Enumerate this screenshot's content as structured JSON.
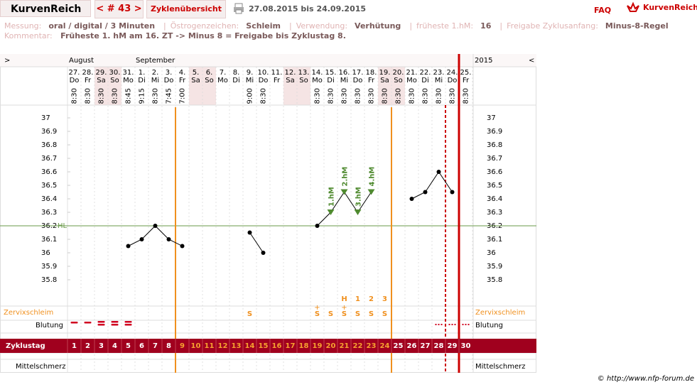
{
  "header": {
    "logo": "KurvenReich",
    "cycle": "< # 43 >",
    "overview": "Zyklenübersicht",
    "range": "27.08.2015 bis 24.09.2015",
    "faq": "FAQ",
    "brand": "KurvenReich"
  },
  "info": {
    "items": [
      {
        "label": "Messung:",
        "value": "oral / digital / 3 Minuten"
      },
      {
        "label": "Östrogenzeichen:",
        "value": "Schleim"
      },
      {
        "label": "Verwendung:",
        "value": "Verhütung"
      },
      {
        "label": "früheste 1.hM:",
        "value": "16"
      },
      {
        "label": "Freigabe Zyklusanfang:",
        "value": "Minus-8-Regel"
      }
    ],
    "separator": "|",
    "comment_label": "Kommentar:",
    "comment": "Früheste 1. hM am 16. ZT -> Minus 8 = Freigabe bis Zyklustag 8."
  },
  "chart_data": {
    "type": "line",
    "nav_left": ">",
    "nav_right": "<",
    "months": [
      "August",
      "September"
    ],
    "year": "2015",
    "dates": [
      "27.",
      "28.",
      "29.",
      "30.",
      "31.",
      "1.",
      "2.",
      "3.",
      "4.",
      "5.",
      "6.",
      "7.",
      "8.",
      "9.",
      "10.",
      "11.",
      "12.",
      "13.",
      "14.",
      "15.",
      "16.",
      "17.",
      "18.",
      "19.",
      "20.",
      "21.",
      "22.",
      "23.",
      "24.",
      "25."
    ],
    "weekdays": [
      "Do",
      "Fr",
      "Sa",
      "So",
      "Mo",
      "Di",
      "Mi",
      "Do",
      "Fr",
      "Sa",
      "So",
      "Mo",
      "Di",
      "Mi",
      "Do",
      "Fr",
      "Sa",
      "So",
      "Mo",
      "Di",
      "Mi",
      "Do",
      "Fr",
      "Sa",
      "So",
      "Mo",
      "Di",
      "Mi",
      "Do",
      "Fr"
    ],
    "times": [
      "8:30",
      "8:30",
      "8:30",
      "8:30",
      "8:45",
      "9:15",
      "8:30",
      "7:45",
      "7:00",
      null,
      null,
      null,
      null,
      "9:00",
      "8:30",
      null,
      null,
      null,
      "8:30",
      "8:30",
      "8:30",
      "8:30",
      "8:30",
      "8:30",
      "8:30",
      "8:30",
      "8:30",
      "8:30",
      "8:30",
      "8:30"
    ],
    "values": [
      null,
      null,
      null,
      null,
      36.05,
      36.1,
      36.2,
      36.1,
      36.05,
      null,
      null,
      null,
      null,
      36.15,
      36.0,
      null,
      null,
      null,
      36.2,
      36.3,
      36.45,
      36.3,
      36.45,
      null,
      null,
      36.4,
      36.45,
      36.6,
      36.45,
      null
    ],
    "color": "#000000",
    "hm_labels": [
      null,
      null,
      null,
      null,
      null,
      null,
      null,
      null,
      null,
      null,
      null,
      null,
      null,
      null,
      null,
      null,
      null,
      null,
      null,
      "1.hM",
      "2.hM",
      "3.hM",
      "4.hM",
      null,
      null,
      null,
      null,
      null,
      null,
      null
    ],
    "ylim": [
      35.7,
      37.1
    ],
    "yticks": [
      35.8,
      35.9,
      36,
      36.1,
      36.2,
      36.3,
      36.4,
      36.5,
      36.6,
      36.7,
      36.8,
      36.9,
      37
    ],
    "hl": {
      "label": "HL",
      "value": 36.2
    },
    "cervix_label": "Zervixschleim",
    "cervix": [
      null,
      null,
      null,
      null,
      null,
      null,
      null,
      null,
      null,
      null,
      null,
      null,
      null,
      "S",
      null,
      null,
      null,
      null,
      "S",
      "S",
      "S",
      "S",
      "S",
      "S",
      null,
      null,
      null,
      null,
      null,
      null
    ],
    "cervix_plus": [
      null,
      null,
      null,
      null,
      null,
      null,
      null,
      null,
      null,
      null,
      null,
      null,
      null,
      null,
      null,
      null,
      null,
      null,
      "+",
      null,
      "+",
      null,
      null,
      null,
      null,
      null,
      null,
      null,
      null,
      null
    ],
    "peak_marks": [
      null,
      null,
      null,
      null,
      null,
      null,
      null,
      null,
      null,
      null,
      null,
      null,
      null,
      null,
      null,
      null,
      null,
      null,
      null,
      null,
      "H",
      "1",
      "2",
      "3",
      null,
      null,
      null,
      null,
      null,
      null
    ],
    "bleeding_label": "Blutung",
    "cycle_label": "Zyklustag",
    "cycle_days": [
      1,
      2,
      3,
      4,
      5,
      6,
      7,
      8,
      9,
      10,
      11,
      12,
      13,
      14,
      15,
      16,
      17,
      18,
      19,
      20,
      21,
      22,
      23,
      24,
      25,
      26,
      27,
      28,
      29,
      30
    ],
    "pain_label": "Mittelschmerz"
  },
  "footer": "© http://www.nfp-forum.de"
}
